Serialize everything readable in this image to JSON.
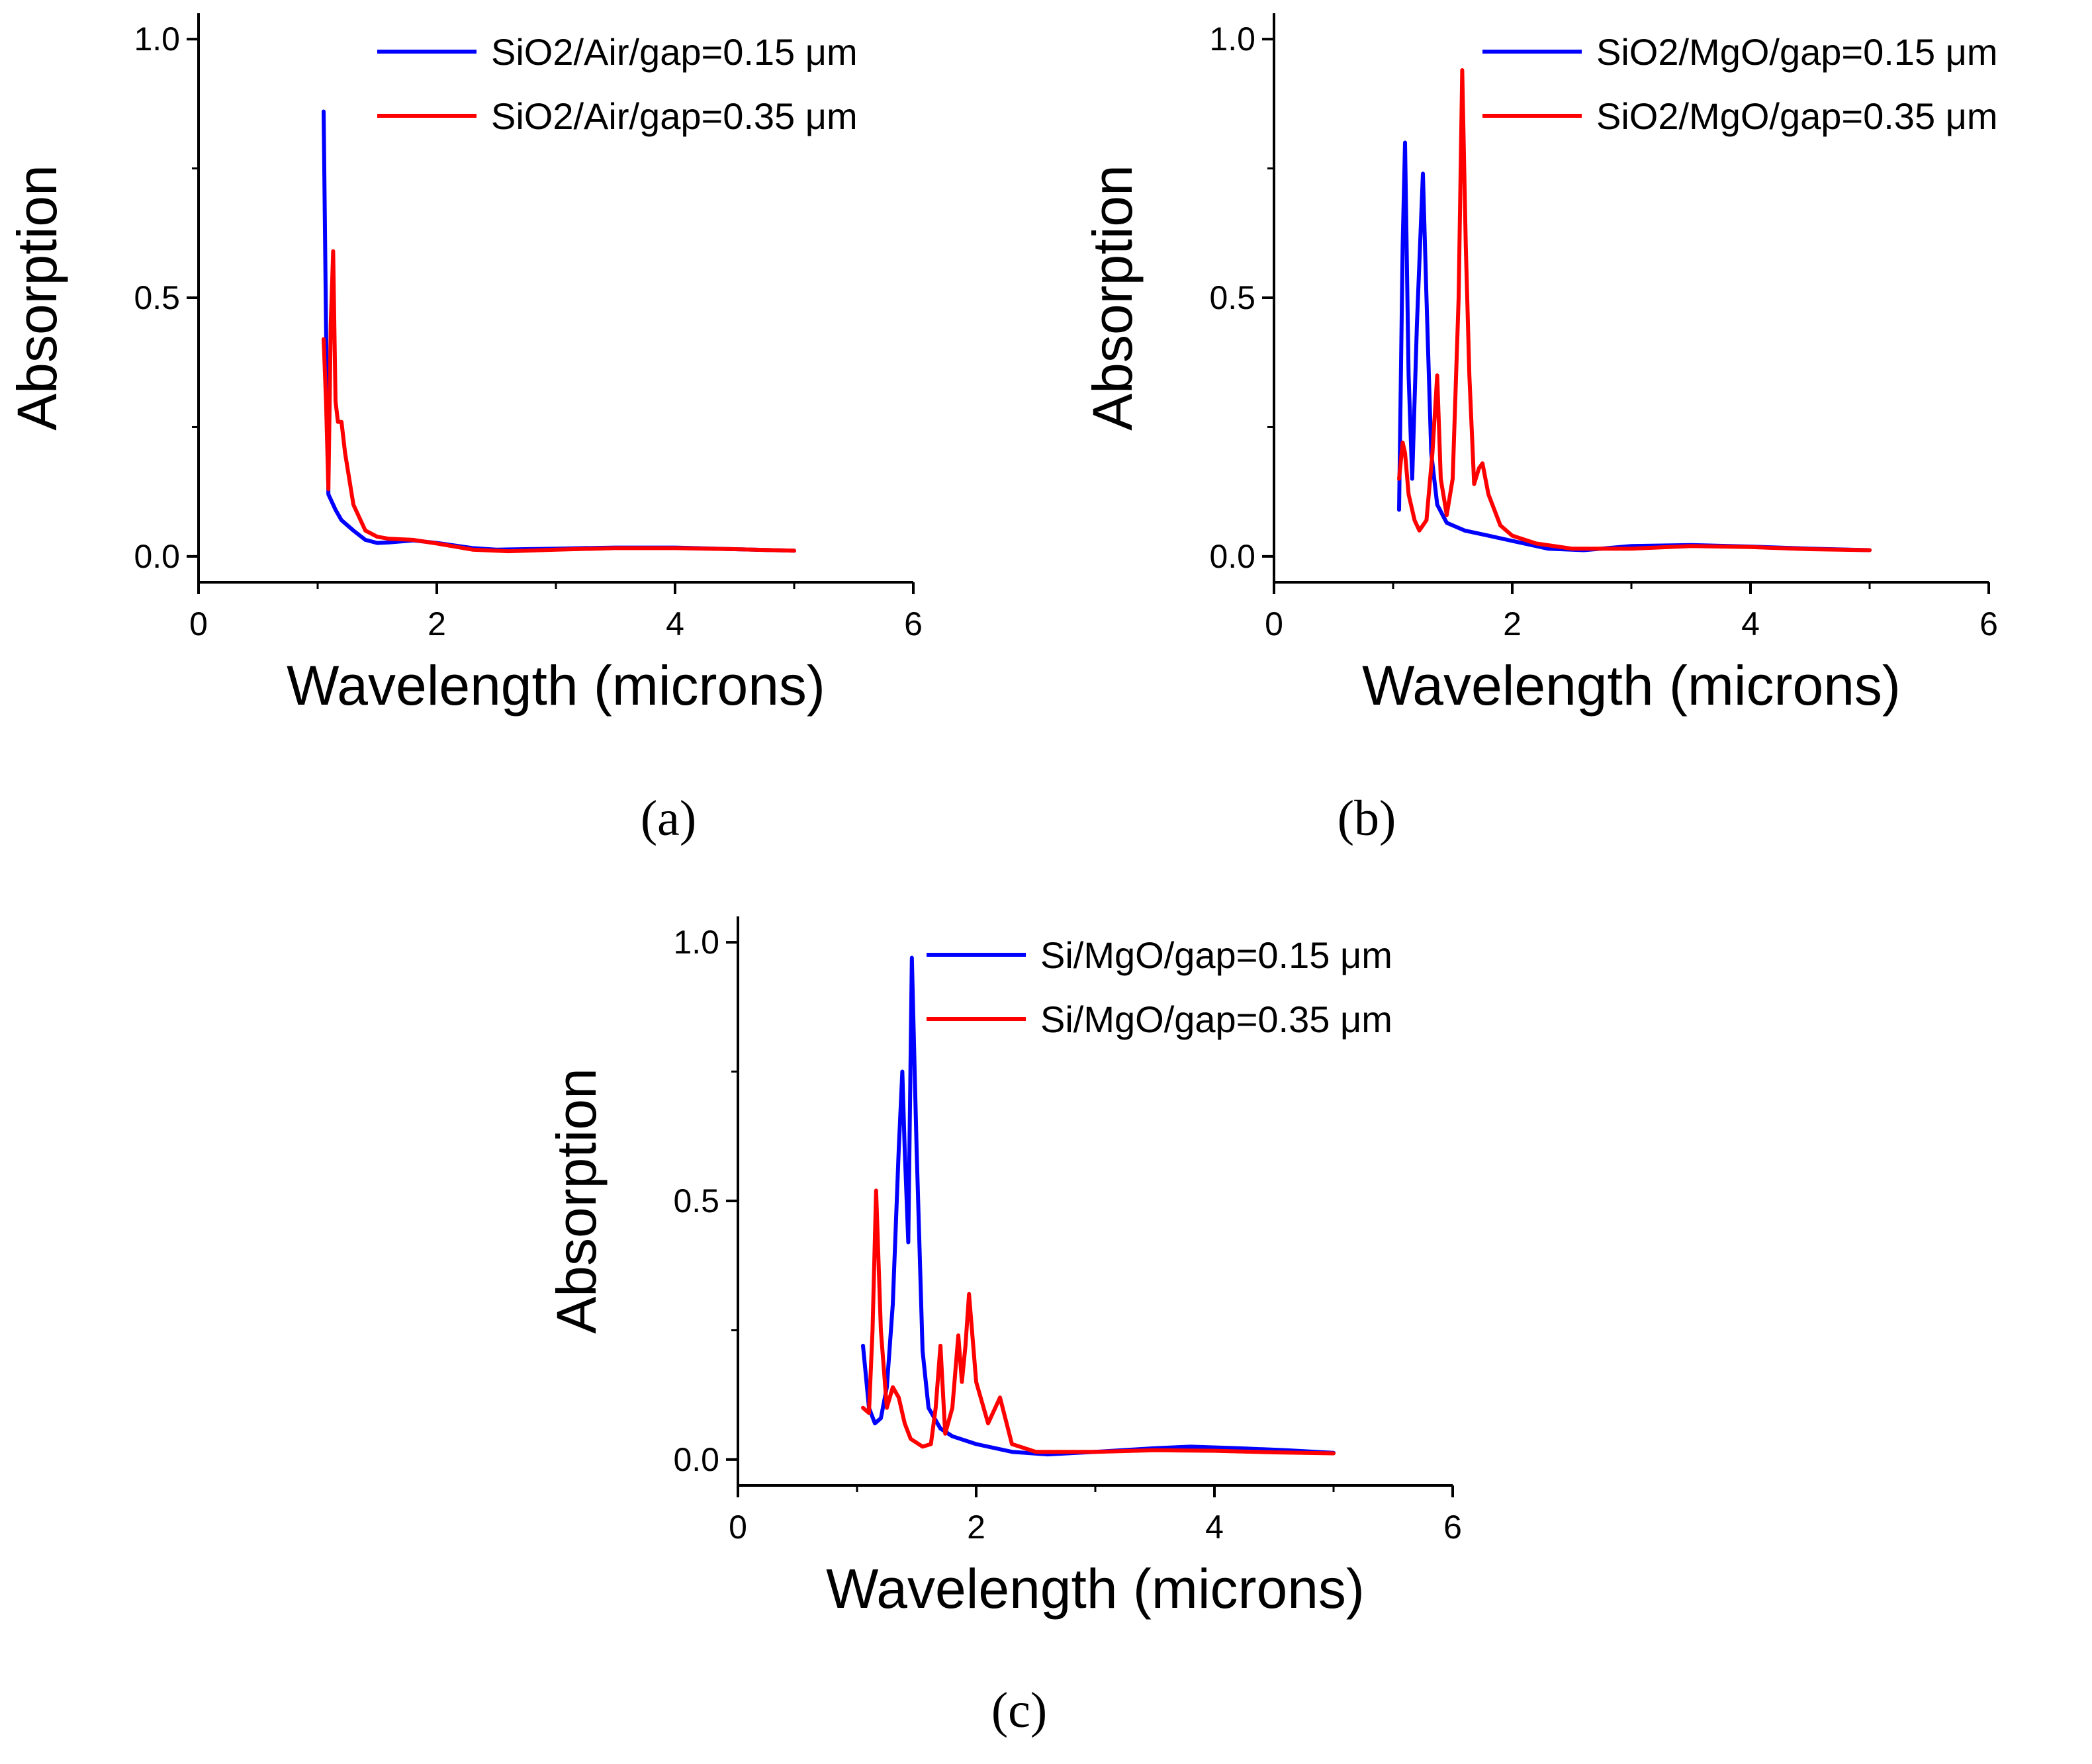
{
  "figure": {
    "panels": [
      {
        "caption": "(a)"
      },
      {
        "caption": "(b)"
      },
      {
        "caption": "(c)"
      }
    ]
  },
  "chart_data": [
    {
      "type": "line",
      "caption": "(a)",
      "xlabel": "Wavelength (microns)",
      "ylabel": "Absorption",
      "xlim": [
        0,
        6
      ],
      "ylim": [
        -0.05,
        1.05
      ],
      "xticks": [
        0,
        2,
        4,
        6
      ],
      "xtick_labels": [
        "0",
        "2",
        "4",
        "6"
      ],
      "yticks": [
        0.0,
        0.5,
        1.0
      ],
      "ytick_labels": [
        "0.0",
        "0.5",
        "1.0"
      ],
      "legend_position": "top-right",
      "grid": false,
      "series": [
        {
          "name": "SiO2/Air/gap=0.15 μm",
          "color": "#0000ff",
          "x": [
            1.05,
            1.07,
            1.09,
            1.1,
            1.15,
            1.2,
            1.3,
            1.4,
            1.5,
            1.6,
            1.8,
            2.0,
            2.3,
            2.5,
            3.0,
            3.5,
            4.0,
            4.5,
            5.0
          ],
          "y": [
            0.86,
            0.45,
            0.12,
            0.115,
            0.09,
            0.07,
            0.05,
            0.032,
            0.026,
            0.027,
            0.031,
            0.026,
            0.016,
            0.013,
            0.015,
            0.017,
            0.017,
            0.014,
            0.011
          ]
        },
        {
          "name": "SiO2/Air/gap=0.35 μm",
          "color": "#ff0000",
          "x": [
            1.05,
            1.07,
            1.09,
            1.11,
            1.13,
            1.15,
            1.17,
            1.2,
            1.23,
            1.3,
            1.4,
            1.5,
            1.6,
            1.8,
            2.0,
            2.3,
            2.6,
            3.0,
            3.5,
            4.0,
            4.5,
            5.0
          ],
          "y": [
            0.42,
            0.3,
            0.13,
            0.45,
            0.59,
            0.3,
            0.26,
            0.26,
            0.2,
            0.1,
            0.05,
            0.038,
            0.034,
            0.032,
            0.025,
            0.013,
            0.01,
            0.013,
            0.016,
            0.016,
            0.014,
            0.011
          ]
        }
      ]
    },
    {
      "type": "line",
      "caption": "(b)",
      "xlabel": "Wavelength (microns)",
      "ylabel": "Absorption",
      "xlim": [
        0,
        6
      ],
      "ylim": [
        -0.05,
        1.05
      ],
      "xticks": [
        0,
        2,
        4,
        6
      ],
      "xtick_labels": [
        "0",
        "2",
        "4",
        "6"
      ],
      "yticks": [
        0.0,
        0.5,
        1.0
      ],
      "ytick_labels": [
        "0.0",
        "0.5",
        "1.0"
      ],
      "legend_position": "top-right",
      "grid": false,
      "series": [
        {
          "name": "SiO2/MgO/gap=0.15 μm",
          "color": "#0000ff",
          "x": [
            1.05,
            1.08,
            1.1,
            1.13,
            1.16,
            1.2,
            1.25,
            1.28,
            1.32,
            1.37,
            1.45,
            1.6,
            1.8,
            2.0,
            2.3,
            2.6,
            3.0,
            3.5,
            4.0,
            4.5,
            5.0
          ],
          "y": [
            0.09,
            0.6,
            0.8,
            0.35,
            0.15,
            0.45,
            0.74,
            0.5,
            0.2,
            0.1,
            0.065,
            0.05,
            0.04,
            0.03,
            0.015,
            0.012,
            0.02,
            0.022,
            0.019,
            0.015,
            0.012
          ]
        },
        {
          "name": "SiO2/MgO/gap=0.35 μm",
          "color": "#ff0000",
          "x": [
            1.05,
            1.08,
            1.1,
            1.13,
            1.18,
            1.22,
            1.28,
            1.33,
            1.37,
            1.4,
            1.45,
            1.5,
            1.55,
            1.58,
            1.61,
            1.64,
            1.68,
            1.72,
            1.75,
            1.8,
            1.9,
            2.0,
            2.2,
            2.5,
            3.0,
            3.5,
            4.0,
            4.5,
            5.0
          ],
          "y": [
            0.15,
            0.22,
            0.2,
            0.12,
            0.07,
            0.05,
            0.07,
            0.2,
            0.35,
            0.15,
            0.08,
            0.15,
            0.5,
            0.94,
            0.6,
            0.35,
            0.14,
            0.17,
            0.18,
            0.12,
            0.06,
            0.04,
            0.025,
            0.015,
            0.015,
            0.02,
            0.018,
            0.014,
            0.012
          ]
        }
      ]
    },
    {
      "type": "line",
      "caption": "(c)",
      "xlabel": "Wavelength (microns)",
      "ylabel": "Absorption",
      "xlim": [
        0,
        6
      ],
      "ylim": [
        -0.05,
        1.05
      ],
      "xticks": [
        0,
        2,
        4,
        6
      ],
      "xtick_labels": [
        "0",
        "2",
        "4",
        "6"
      ],
      "yticks": [
        0.0,
        0.5,
        1.0
      ],
      "ytick_labels": [
        "0.0",
        "0.5",
        "1.0"
      ],
      "legend_position": "top-right",
      "grid": false,
      "series": [
        {
          "name": "Si/MgO/gap=0.15 μm",
          "color": "#0000ff",
          "x": [
            1.05,
            1.1,
            1.15,
            1.2,
            1.25,
            1.3,
            1.35,
            1.38,
            1.4,
            1.43,
            1.46,
            1.5,
            1.55,
            1.6,
            1.7,
            1.8,
            2.0,
            2.3,
            2.6,
            3.0,
            3.5,
            3.8,
            4.2,
            4.6,
            5.0
          ],
          "y": [
            0.22,
            0.1,
            0.07,
            0.08,
            0.14,
            0.3,
            0.6,
            0.75,
            0.6,
            0.42,
            0.97,
            0.6,
            0.21,
            0.1,
            0.06,
            0.045,
            0.03,
            0.015,
            0.01,
            0.015,
            0.022,
            0.025,
            0.022,
            0.018,
            0.013
          ]
        },
        {
          "name": "Si/MgO/gap=0.35 μm",
          "color": "#ff0000",
          "x": [
            1.05,
            1.1,
            1.13,
            1.16,
            1.2,
            1.25,
            1.3,
            1.35,
            1.4,
            1.45,
            1.55,
            1.62,
            1.66,
            1.7,
            1.74,
            1.8,
            1.85,
            1.88,
            1.91,
            1.94,
            2.0,
            2.1,
            2.2,
            2.3,
            2.5,
            3.0,
            3.5,
            4.0,
            4.5,
            5.0
          ],
          "y": [
            0.1,
            0.09,
            0.25,
            0.52,
            0.25,
            0.1,
            0.14,
            0.12,
            0.07,
            0.04,
            0.025,
            0.03,
            0.1,
            0.22,
            0.05,
            0.1,
            0.24,
            0.15,
            0.22,
            0.32,
            0.15,
            0.07,
            0.12,
            0.03,
            0.015,
            0.015,
            0.018,
            0.017,
            0.014,
            0.012
          ]
        }
      ]
    }
  ]
}
